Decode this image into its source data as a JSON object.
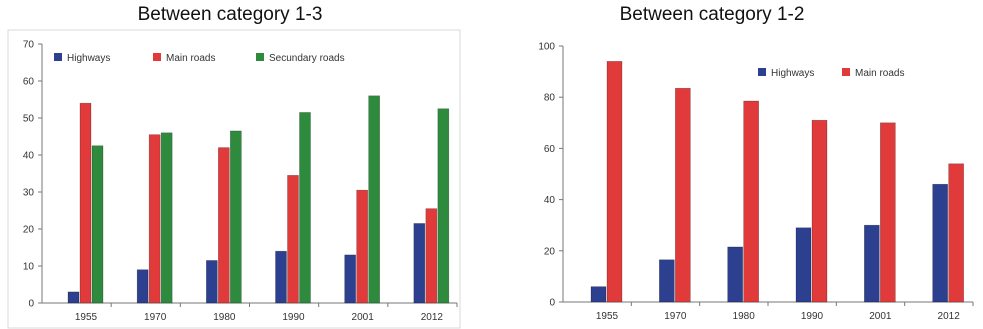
{
  "chart_data": [
    {
      "type": "bar",
      "title": "Between category 1-3",
      "categories": [
        "1955",
        "1970",
        "1980",
        "1990",
        "2001",
        "2012"
      ],
      "series": [
        {
          "name": "Highways",
          "color": "#2d3f8f",
          "values": [
            3,
            9,
            11.5,
            14,
            13,
            21.5
          ]
        },
        {
          "name": "Main roads",
          "color": "#e03a3a",
          "values": [
            54,
            45.5,
            42,
            34.5,
            30.5,
            25.5
          ]
        },
        {
          "name": "Secundary roads",
          "color": "#2e8b3e",
          "values": [
            42.5,
            46,
            46.5,
            51.5,
            56,
            52.5
          ]
        }
      ],
      "yticks": [
        "0",
        "10",
        "20",
        "30",
        "40",
        "50",
        "60",
        "70"
      ],
      "ylim": [
        0,
        70
      ],
      "xlabel": "",
      "ylabel": "",
      "legend": "top"
    },
    {
      "type": "bar",
      "title": "Between category 1-2",
      "categories": [
        "1955",
        "1970",
        "1980",
        "1990",
        "2001",
        "2012"
      ],
      "series": [
        {
          "name": "Highways",
          "color": "#2d3f8f",
          "values": [
            6,
            16.5,
            21.5,
            29,
            30,
            46
          ]
        },
        {
          "name": "Main roads",
          "color": "#e03a3a",
          "values": [
            94,
            83.5,
            78.5,
            71,
            70,
            54
          ]
        }
      ],
      "yticks": [
        "0",
        "20",
        "40",
        "60",
        "80",
        "100"
      ],
      "ylim": [
        0,
        100
      ],
      "xlabel": "",
      "ylabel": "",
      "legend": "top-right"
    }
  ]
}
